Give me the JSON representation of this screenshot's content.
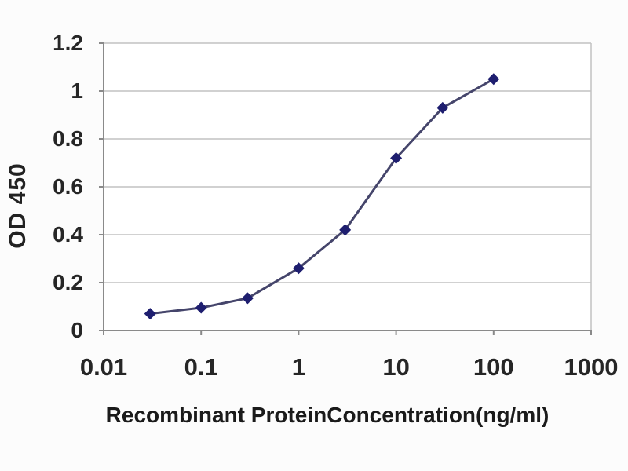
{
  "chart_data": {
    "type": "line",
    "marker": "diamond",
    "x": [
      0.03,
      0.1,
      0.3,
      1,
      3,
      10,
      30,
      100
    ],
    "series": [
      {
        "name": "OD450",
        "values": [
          0.07,
          0.095,
          0.135,
          0.26,
          0.42,
          0.72,
          0.93,
          1.05
        ]
      }
    ],
    "xlabel": "Recombinant ProteinConcentration(ng/ml)",
    "ylabel": "OD 450",
    "x_scale": "log",
    "xlim": [
      0.01,
      1000
    ],
    "ylim": [
      0,
      1.2
    ],
    "x_ticks": {
      "values": [
        0.01,
        0.1,
        1,
        10,
        100,
        1000
      ],
      "labels": [
        "0.01",
        "0.1",
        "1",
        "10",
        "100",
        "1000"
      ]
    },
    "y_ticks": {
      "values": [
        0,
        0.2,
        0.4,
        0.6,
        0.8,
        1,
        1.2
      ],
      "labels": [
        "0",
        "0.2",
        "0.4",
        "0.6",
        "0.8",
        "1",
        "1.2"
      ]
    },
    "grid": "horizontal",
    "legend": "none",
    "colors": {
      "line": "#45456B",
      "marker": "#1E1E6F",
      "grid": "#C2C2C2",
      "frame": "#8A8A8A",
      "text": "#222222",
      "plot_bg": "#FFFFFF",
      "page_bg": "#FCFCFC"
    }
  }
}
